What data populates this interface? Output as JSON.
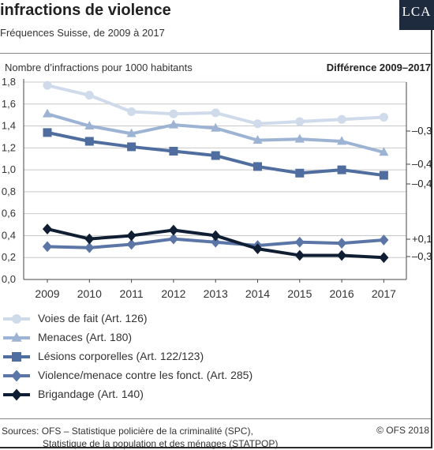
{
  "header": {
    "title": "infractions de violence",
    "subtitle": "Fréquences Suisse, de 2009 à 2017",
    "logo_text": "LCA"
  },
  "chart_data": {
    "type": "line",
    "ylabel": "Nombre d’infractions pour 1000 habitants",
    "diff_title": "Différence 2009–2017",
    "x": [
      "2009",
      "2010",
      "2011",
      "2012",
      "2013",
      "2014",
      "2015",
      "2016",
      "2017"
    ],
    "ylim": [
      0,
      1.8
    ],
    "yticks": [
      "0,0",
      "0,2",
      "0,4",
      "0,6",
      "0,8",
      "1,0",
      "1,2",
      "1,4",
      "1,6",
      "1,8"
    ],
    "grid": true,
    "legend_position": "bottom",
    "series": [
      {
        "name": "Voies de fait (Art. 126)",
        "marker": "circle",
        "color": "#cfdaeb",
        "values": [
          1.77,
          1.68,
          1.53,
          1.51,
          1.52,
          1.42,
          1.44,
          1.46,
          1.48
        ],
        "difference": "–0,3"
      },
      {
        "name": "Menaces (Art. 180)",
        "marker": "triangle",
        "color": "#9db3d4",
        "values": [
          1.51,
          1.4,
          1.33,
          1.41,
          1.38,
          1.27,
          1.28,
          1.26,
          1.16
        ],
        "difference": "–0,4"
      },
      {
        "name": "Lésions corporelles (Art. 122/123)",
        "marker": "square",
        "color": "#4f6d9e",
        "values": [
          1.34,
          1.26,
          1.21,
          1.17,
          1.13,
          1.03,
          0.97,
          1.0,
          0.95
        ],
        "difference": "–0,4"
      },
      {
        "name": "Violence/menace contre les fonct. (Art. 285)",
        "marker": "diamond",
        "color": "#5b76a6",
        "values": [
          0.3,
          0.29,
          0.32,
          0.37,
          0.34,
          0.31,
          0.34,
          0.33,
          0.36
        ],
        "difference": "+0,1"
      },
      {
        "name": "Brigandage (Art. 140)",
        "marker": "diamond",
        "color": "#0f1e33",
        "values": [
          0.46,
          0.37,
          0.4,
          0.45,
          0.4,
          0.28,
          0.22,
          0.22,
          0.2
        ],
        "difference": "–0,3"
      }
    ]
  },
  "footer": {
    "source_line1": "Sources: OFS – Statistique policière de la criminalité (SPC),",
    "source_line2": "Statistique de la population et des ménages (STATPOP)",
    "copyright": "© OFS 2018"
  }
}
